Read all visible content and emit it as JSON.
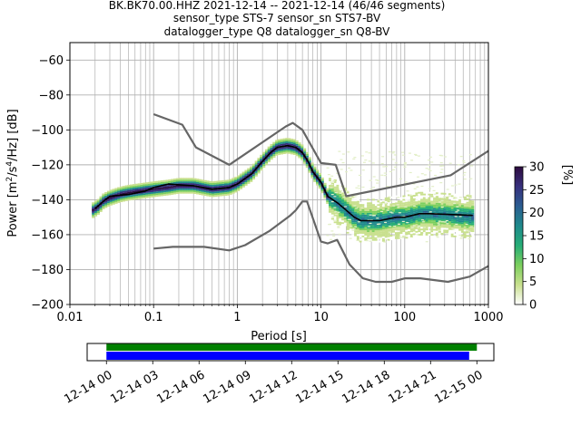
{
  "chart_data": [
    {
      "type": "heatmap",
      "title": [
        "BK.BK70.00.HHZ   2021-12-14 -- 2021-12-14  (46/46 segments)",
        "sensor_type STS-7 sensor_sn STS7-BV",
        "datalogger_type Q8 datalogger_sn Q8-BV"
      ],
      "xlabel": "Period [s]",
      "ylabel_parts": [
        "Power [m",
        "2",
        "/s",
        "4",
        "/Hz] [dB]"
      ],
      "xscale": "log",
      "xlim": [
        0.01,
        1000
      ],
      "ylim": [
        -200,
        -50
      ],
      "x_ticks": [
        0.01,
        0.1,
        1,
        10,
        100,
        1000
      ],
      "x_tick_labels": [
        "0.01",
        "0.1",
        "1",
        "10",
        "100",
        "1000"
      ],
      "y_ticks": [
        -200,
        -180,
        -160,
        -140,
        -120,
        -100,
        -80,
        -60
      ],
      "y_tick_labels": [
        "−200",
        "−180",
        "−160",
        "−140",
        "−120",
        "−100",
        "−80",
        "−60"
      ],
      "grid": true,
      "colorbar": {
        "label": "[%]",
        "range": [
          0,
          30
        ],
        "ticks": [
          0,
          5,
          10,
          15,
          20,
          25,
          30
        ],
        "tick_labels": [
          "0",
          "5",
          "10",
          "15",
          "20",
          "25",
          "30"
        ],
        "colors": [
          "#ffffff",
          "#c9e08e",
          "#7ccf5e",
          "#26ad77",
          "#1f8a8c",
          "#2b5d91",
          "#37307d",
          "#2d0b3f"
        ]
      },
      "series": [
        {
          "role": "high-noise-model",
          "color": "#666666",
          "points": [
            [
              0.1,
              -91
            ],
            [
              0.22,
              -97
            ],
            [
              0.32,
              -110
            ],
            [
              0.8,
              -120
            ],
            [
              3.8,
              -98
            ],
            [
              4.6,
              -96
            ],
            [
              6,
              -100
            ],
            [
              10,
              -119
            ],
            [
              15,
              -120
            ],
            [
              20,
              -138
            ],
            [
              354,
              -126
            ],
            [
              1000,
              -112
            ]
          ]
        },
        {
          "role": "low-noise-model",
          "color": "#666666",
          "points": [
            [
              0.1,
              -168
            ],
            [
              0.17,
              -167
            ],
            [
              0.4,
              -167
            ],
            [
              0.8,
              -169
            ],
            [
              1.24,
              -166
            ],
            [
              2.4,
              -158
            ],
            [
              4.3,
              -149
            ],
            [
              5,
              -146
            ],
            [
              6,
              -141
            ],
            [
              6.8,
              -141
            ],
            [
              10,
              -164
            ],
            [
              12,
              -165
            ],
            [
              15.6,
              -163
            ],
            [
              21.9,
              -177
            ],
            [
              31.6,
              -185
            ],
            [
              45,
              -187
            ],
            [
              70,
              -187
            ],
            [
              101,
              -185
            ],
            [
              154,
              -185
            ],
            [
              328,
              -187
            ],
            [
              600,
              -184
            ],
            [
              1000,
              -178
            ]
          ]
        },
        {
          "role": "mode",
          "color": "#000000",
          "points": [
            [
              0.02,
              -145
            ],
            [
              0.025,
              -141
            ],
            [
              0.03,
              -138
            ],
            [
              0.05,
              -137
            ],
            [
              0.08,
              -135
            ],
            [
              0.1,
              -133
            ],
            [
              0.15,
              -131
            ],
            [
              0.3,
              -132
            ],
            [
              0.5,
              -134
            ],
            [
              0.8,
              -133
            ],
            [
              1.0,
              -131
            ],
            [
              1.5,
              -125
            ],
            [
              2.0,
              -118
            ],
            [
              2.5,
              -113
            ],
            [
              3.0,
              -110
            ],
            [
              4.0,
              -109
            ],
            [
              5.0,
              -110
            ],
            [
              6.0,
              -113
            ],
            [
              7.0,
              -118
            ],
            [
              8.0,
              -124
            ],
            [
              10.0,
              -130
            ],
            [
              12.0,
              -138
            ],
            [
              16.0,
              -142
            ],
            [
              20.0,
              -146
            ],
            [
              25.0,
              -150
            ],
            [
              30.0,
              -152
            ],
            [
              50.0,
              -152
            ],
            [
              80.0,
              -150
            ],
            [
              100.0,
              -150
            ],
            [
              150.0,
              -148
            ],
            [
              200.0,
              -148
            ],
            [
              650.0,
              -149
            ]
          ]
        },
        {
          "role": "psd-density-center",
          "color": "#26ad77",
          "points": [
            [
              0.019,
              -146
            ],
            [
              0.022,
              -144
            ],
            [
              0.025,
              -141
            ],
            [
              0.03,
              -139
            ],
            [
              0.04,
              -137
            ],
            [
              0.05,
              -136
            ],
            [
              0.07,
              -135
            ],
            [
              0.1,
              -134
            ],
            [
              0.15,
              -133
            ],
            [
              0.2,
              -132
            ],
            [
              0.3,
              -132
            ],
            [
              0.5,
              -134
            ],
            [
              0.8,
              -133
            ],
            [
              1.0,
              -131
            ],
            [
              1.5,
              -125
            ],
            [
              2.0,
              -118
            ],
            [
              2.5,
              -113
            ],
            [
              3.0,
              -110
            ],
            [
              4.0,
              -109
            ],
            [
              5.0,
              -110
            ],
            [
              6.0,
              -113
            ],
            [
              7.0,
              -118
            ],
            [
              8.0,
              -124
            ],
            [
              10.0,
              -130
            ],
            [
              12.0,
              -138
            ],
            [
              16.0,
              -142
            ],
            [
              20.0,
              -146
            ],
            [
              25.0,
              -150
            ],
            [
              30.0,
              -152
            ],
            [
              50.0,
              -152
            ],
            [
              80.0,
              -150
            ],
            [
              100.0,
              -150
            ],
            [
              150.0,
              -148
            ],
            [
              200.0,
              -148
            ],
            [
              400.0,
              -149
            ],
            [
              650.0,
              -150
            ]
          ]
        }
      ],
      "timeline": {
        "x_tick_labels": [
          "12-14 00",
          "12-14 03",
          "12-14 06",
          "12-14 09",
          "12-14 12",
          "12-14 15",
          "12-14 18",
          "12-14 21",
          "12-15 00"
        ],
        "x_ticks_hours": [
          0,
          3,
          6,
          9,
          12,
          15,
          18,
          21,
          24
        ],
        "xlim_hours": [
          -1.25,
          25.1
        ],
        "bars": [
          {
            "role": "data-availability",
            "color": "#008000",
            "start_hours": 0,
            "end_hours": 24
          },
          {
            "role": "psd-segments",
            "color": "#0000ff",
            "start_hours": 0,
            "end_hours": 23.5
          }
        ]
      }
    }
  ]
}
